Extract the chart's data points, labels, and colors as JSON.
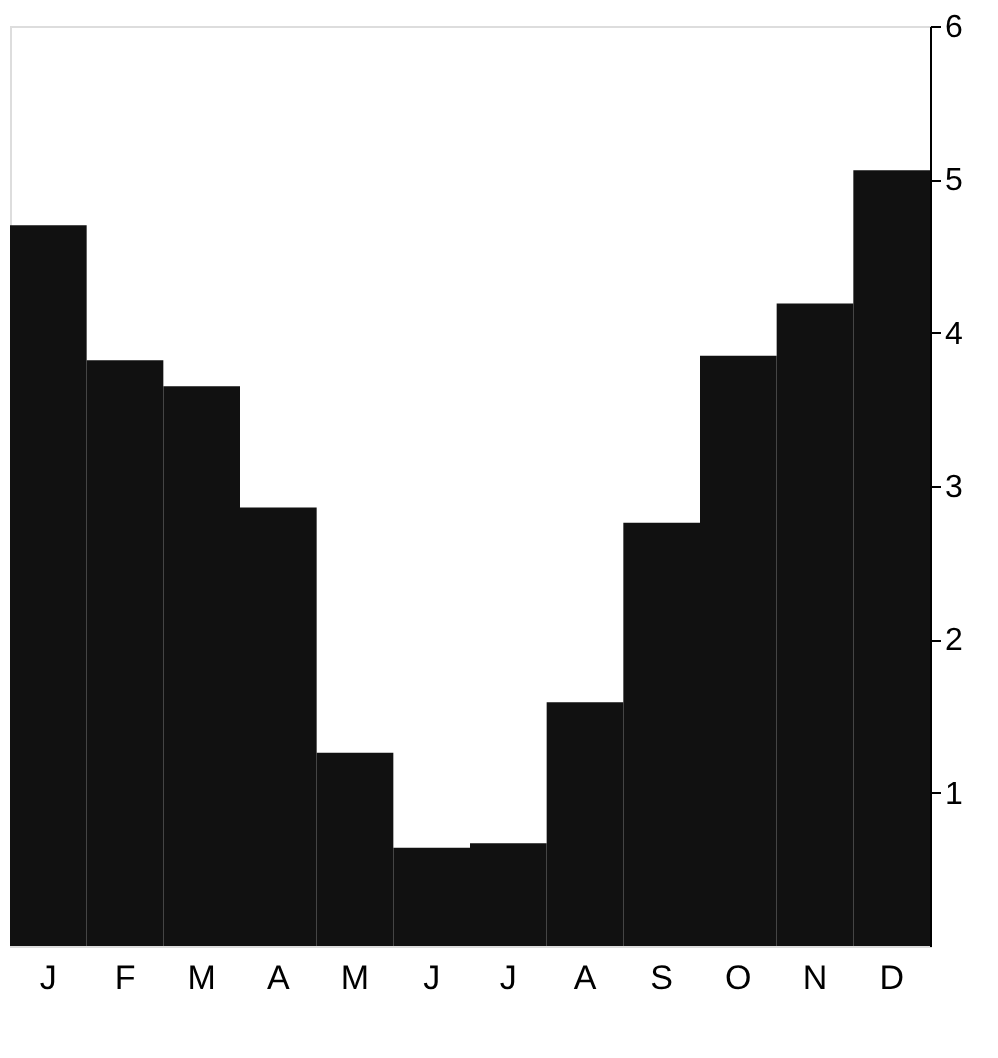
{
  "chart_data": {
    "type": "bar",
    "categories": [
      "J",
      "F",
      "M",
      "A",
      "M",
      "J",
      "J",
      "A",
      "S",
      "O",
      "N",
      "D"
    ],
    "values": [
      4.7,
      3.82,
      3.65,
      2.86,
      1.26,
      0.64,
      0.67,
      1.59,
      2.76,
      3.85,
      4.19,
      5.06
    ],
    "color": "#111111",
    "ylim": [
      0,
      6
    ],
    "yticks": [
      1,
      2,
      3,
      4,
      5,
      6
    ],
    "grid": false
  }
}
